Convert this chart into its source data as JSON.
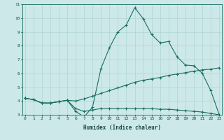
{
  "xlabel": "Humidex (Indice chaleur)",
  "bg_color": "#cce8e8",
  "grid_color": "#b0d4d4",
  "line_color": "#1a6e64",
  "xmin": 0,
  "xmax": 23,
  "ymin": 3,
  "ymax": 11,
  "line1_y": [
    4.2,
    4.1,
    3.85,
    3.85,
    3.95,
    4.05,
    3.25,
    2.85,
    3.55,
    6.35,
    7.85,
    9.0,
    9.5,
    10.75,
    9.95,
    8.8,
    8.2,
    8.3,
    7.2,
    6.6,
    6.55,
    6.0,
    4.75,
    3.0
  ],
  "line2_y": [
    4.2,
    4.1,
    3.85,
    3.85,
    3.95,
    4.05,
    4.0,
    4.15,
    4.35,
    4.55,
    4.75,
    4.95,
    5.15,
    5.35,
    5.5,
    5.6,
    5.7,
    5.85,
    5.95,
    6.05,
    6.15,
    6.25,
    6.3,
    6.4
  ],
  "line3_y": [
    4.2,
    4.1,
    3.85,
    3.85,
    3.95,
    4.05,
    3.45,
    3.25,
    3.35,
    3.45,
    3.45,
    3.45,
    3.45,
    3.45,
    3.45,
    3.45,
    3.4,
    3.4,
    3.35,
    3.3,
    3.25,
    3.2,
    3.1,
    3.0
  ]
}
